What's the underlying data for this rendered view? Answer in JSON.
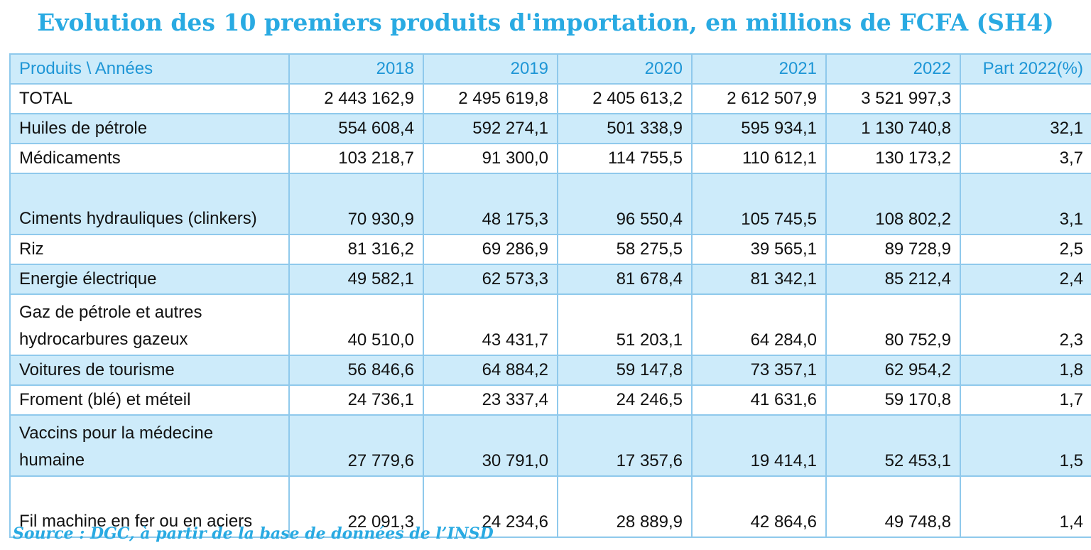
{
  "title": "Evolution des 10 premiers produits d'importation, en millions de FCFA (SH4)",
  "table": {
    "headers": [
      "Produits \\ Années",
      "2018",
      "2019",
      "2020",
      "2021",
      "2022",
      "Part 2022(%)"
    ],
    "rows": [
      {
        "product": "TOTAL",
        "values": [
          "2 443 162,9",
          "2 495 619,8",
          "2 405 613,2",
          "2 612 507,9",
          "3 521 997,3",
          ""
        ]
      },
      {
        "product": "Huiles de pétrole",
        "values": [
          "554 608,4",
          "592 274,1",
          "501 338,9",
          "595 934,1",
          "1 130 740,8",
          "32,1"
        ]
      },
      {
        "product": "Médicaments",
        "values": [
          "103 218,7",
          "91 300,0",
          "114 755,5",
          "110 612,1",
          "130 173,2",
          "3,7"
        ]
      },
      {
        "product": "Ciments hydrauliques (clinkers)",
        "values": [
          "70 930,9",
          "48 175,3",
          "96 550,4",
          "105 745,5",
          "108 802,2",
          "3,1"
        ]
      },
      {
        "product": "Riz",
        "values": [
          "81 316,2",
          "69 286,9",
          "58 275,5",
          "39 565,1",
          "89 728,9",
          "2,5"
        ]
      },
      {
        "product": "Energie électrique",
        "values": [
          "49 582,1",
          "62 573,3",
          "81 678,4",
          "81 342,1",
          "85 212,4",
          "2,4"
        ]
      },
      {
        "product": "Gaz de pétrole et autres hydrocarbures gazeux",
        "values": [
          "40 510,0",
          "43 431,7",
          "51 203,1",
          "64 284,0",
          "80 752,9",
          "2,3"
        ]
      },
      {
        "product": "Voitures de tourisme",
        "values": [
          "56 846,6",
          "64 884,2",
          "59 147,8",
          "73 357,1",
          "62 954,2",
          "1,8"
        ]
      },
      {
        "product": "Froment (blé) et méteil",
        "values": [
          "24 736,1",
          "23 337,4",
          "24 246,5",
          "41 631,6",
          "59 170,8",
          "1,7"
        ]
      },
      {
        "product": "Vaccins pour la médecine humaine",
        "values": [
          "27 779,6",
          "30 791,0",
          "17 357,6",
          "19 414,1",
          "52 453,1",
          "1,5"
        ]
      },
      {
        "product": "Fil machine en fer ou en aciers",
        "values": [
          "22 091,3",
          "24 234,6",
          "28 889,9",
          "42 864,6",
          "49 748,8",
          "1,4"
        ]
      }
    ]
  },
  "source": "Source : DGC, à partir de la base de données de l’INSD"
}
